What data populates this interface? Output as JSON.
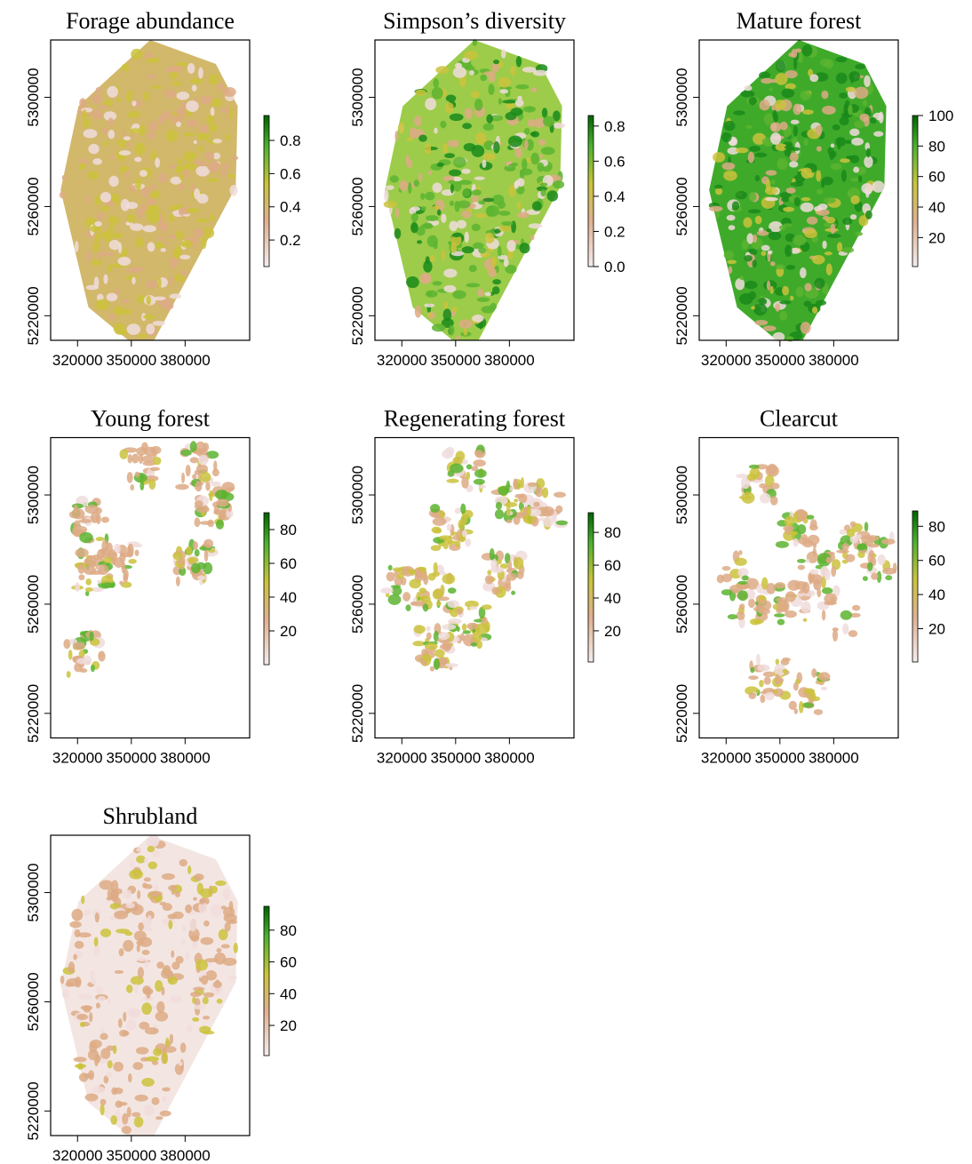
{
  "maps": [
    {
      "title": "Forage abundance",
      "xlim": [
        305000,
        416000
      ],
      "ylim": [
        5211000,
        5321000
      ],
      "xticks": [
        320000,
        350000,
        380000
      ],
      "yticks": [
        5220000,
        5260000,
        5300000
      ],
      "colorbar": {
        "lim": [
          0.04,
          0.95
        ],
        "ticks": [
          0.2,
          0.4,
          0.6,
          0.8
        ]
      }
    },
    {
      "title": "Simpson’s diversity",
      "xlim": [
        305000,
        416000
      ],
      "ylim": [
        5211000,
        5321000
      ],
      "xticks": [
        320000,
        350000,
        380000
      ],
      "yticks": [
        5220000,
        5260000,
        5300000
      ],
      "colorbar": {
        "lim": [
          0,
          0.86
        ],
        "ticks": [
          {
            "value": 0,
            "label": "0.0"
          },
          0.2,
          0.4,
          0.6,
          0.8
        ]
      }
    },
    {
      "title": "Mature forest",
      "xlim": [
        305000,
        416000
      ],
      "ylim": [
        5211000,
        5321000
      ],
      "xticks": [
        320000,
        350000,
        380000
      ],
      "yticks": [
        5220000,
        5260000,
        5300000
      ],
      "colorbar": {
        "lim": [
          1,
          100
        ],
        "ticks": [
          20,
          40,
          60,
          80,
          100
        ]
      }
    },
    {
      "title": "Young forest",
      "xlim": [
        305000,
        416000
      ],
      "ylim": [
        5211000,
        5321000
      ],
      "xticks": [
        320000,
        350000,
        380000
      ],
      "yticks": [
        5220000,
        5260000,
        5300000
      ],
      "colorbar": {
        "lim": [
          0,
          90
        ],
        "ticks": [
          20,
          40,
          60,
          80
        ]
      }
    },
    {
      "title": "Regenerating forest",
      "xlim": [
        305000,
        416000
      ],
      "ylim": [
        5211000,
        5321000
      ],
      "xticks": [
        320000,
        350000,
        380000
      ],
      "yticks": [
        5220000,
        5260000,
        5300000
      ],
      "colorbar": {
        "lim": [
          1,
          92
        ],
        "ticks": [
          20,
          40,
          60,
          80
        ]
      }
    },
    {
      "title": "Clearcut",
      "xlim": [
        305000,
        416000
      ],
      "ylim": [
        5211000,
        5321000
      ],
      "xticks": [
        320000,
        350000,
        380000
      ],
      "yticks": [
        5220000,
        5260000,
        5300000
      ],
      "colorbar": {
        "lim": [
          0.5,
          89
        ],
        "ticks": [
          20,
          40,
          60,
          80
        ]
      }
    },
    {
      "title": "Shrubland",
      "xlim": [
        305000,
        416000
      ],
      "ylim": [
        5211000,
        5321000
      ],
      "xticks": [
        320000,
        350000,
        380000
      ],
      "yticks": [
        5220000,
        5260000,
        5300000
      ],
      "colorbar": {
        "lim": [
          1,
          95
        ],
        "ticks": [
          20,
          40,
          60,
          80
        ]
      }
    }
  ]
}
